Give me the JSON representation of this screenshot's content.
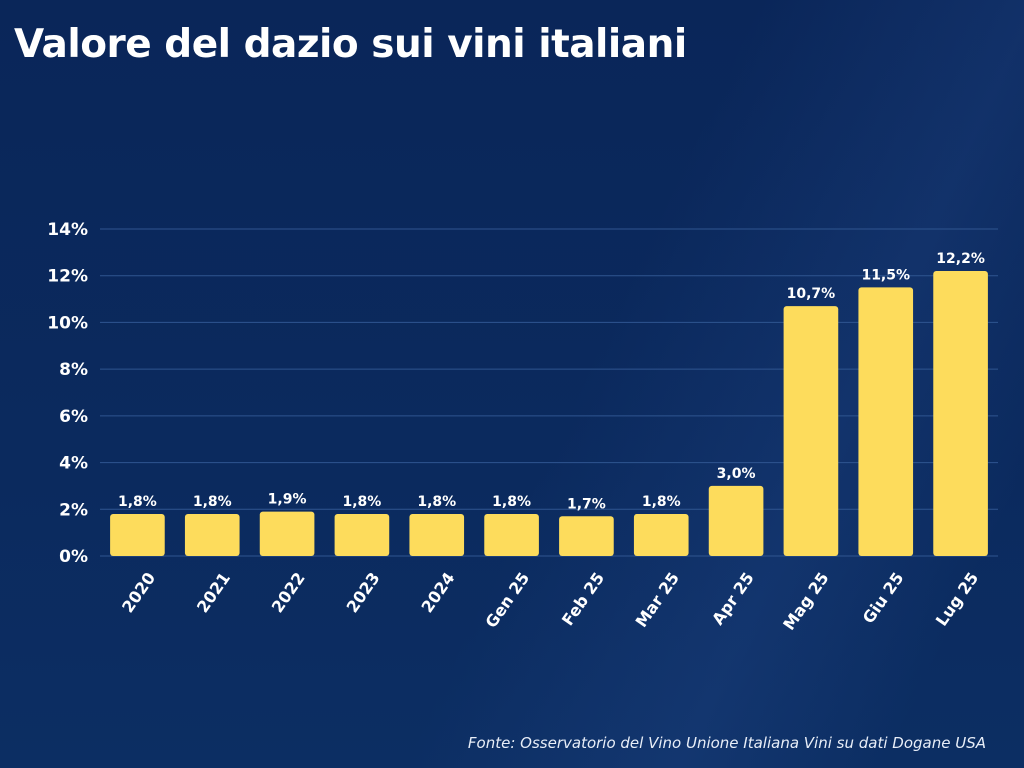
{
  "title": "Valore del dazio sui vini italiani",
  "source": "Fonte: Osservatorio del Vino Unione Italiana Vini su dati Dogane USA",
  "colors": {
    "background": "#0b2a5c",
    "bar": "#fddc5c",
    "gridline": "#2f5590",
    "text": "#ffffff"
  },
  "chart_data": {
    "type": "bar",
    "title": "Valore del dazio sui vini italiani",
    "xlabel": "",
    "ylabel": "",
    "categories": [
      "2020",
      "2021",
      "2022",
      "2023",
      "2024",
      "Gen 25",
      "Feb 25",
      "Mar 25",
      "Apr 25",
      "Mag 25",
      "Giu 25",
      "Lug 25"
    ],
    "values": [
      1.8,
      1.8,
      1.9,
      1.8,
      1.8,
      1.8,
      1.7,
      1.8,
      3.0,
      10.7,
      11.5,
      12.2
    ],
    "data_labels": [
      "1,8%",
      "1,8%",
      "1,9%",
      "1,8%",
      "1,8%",
      "1,8%",
      "1,7%",
      "1,8%",
      "3,0%",
      "10,7%",
      "11,5%",
      "12,2%"
    ],
    "ylim": [
      0,
      14
    ],
    "yticks": [
      0,
      2,
      4,
      6,
      8,
      10,
      12,
      14
    ],
    "ytick_labels": [
      "0%",
      "2%",
      "4%",
      "6%",
      "8%",
      "10%",
      "12%",
      "14%"
    ],
    "grid": true,
    "legend": "none",
    "x_tick_rotation_deg": -55
  }
}
